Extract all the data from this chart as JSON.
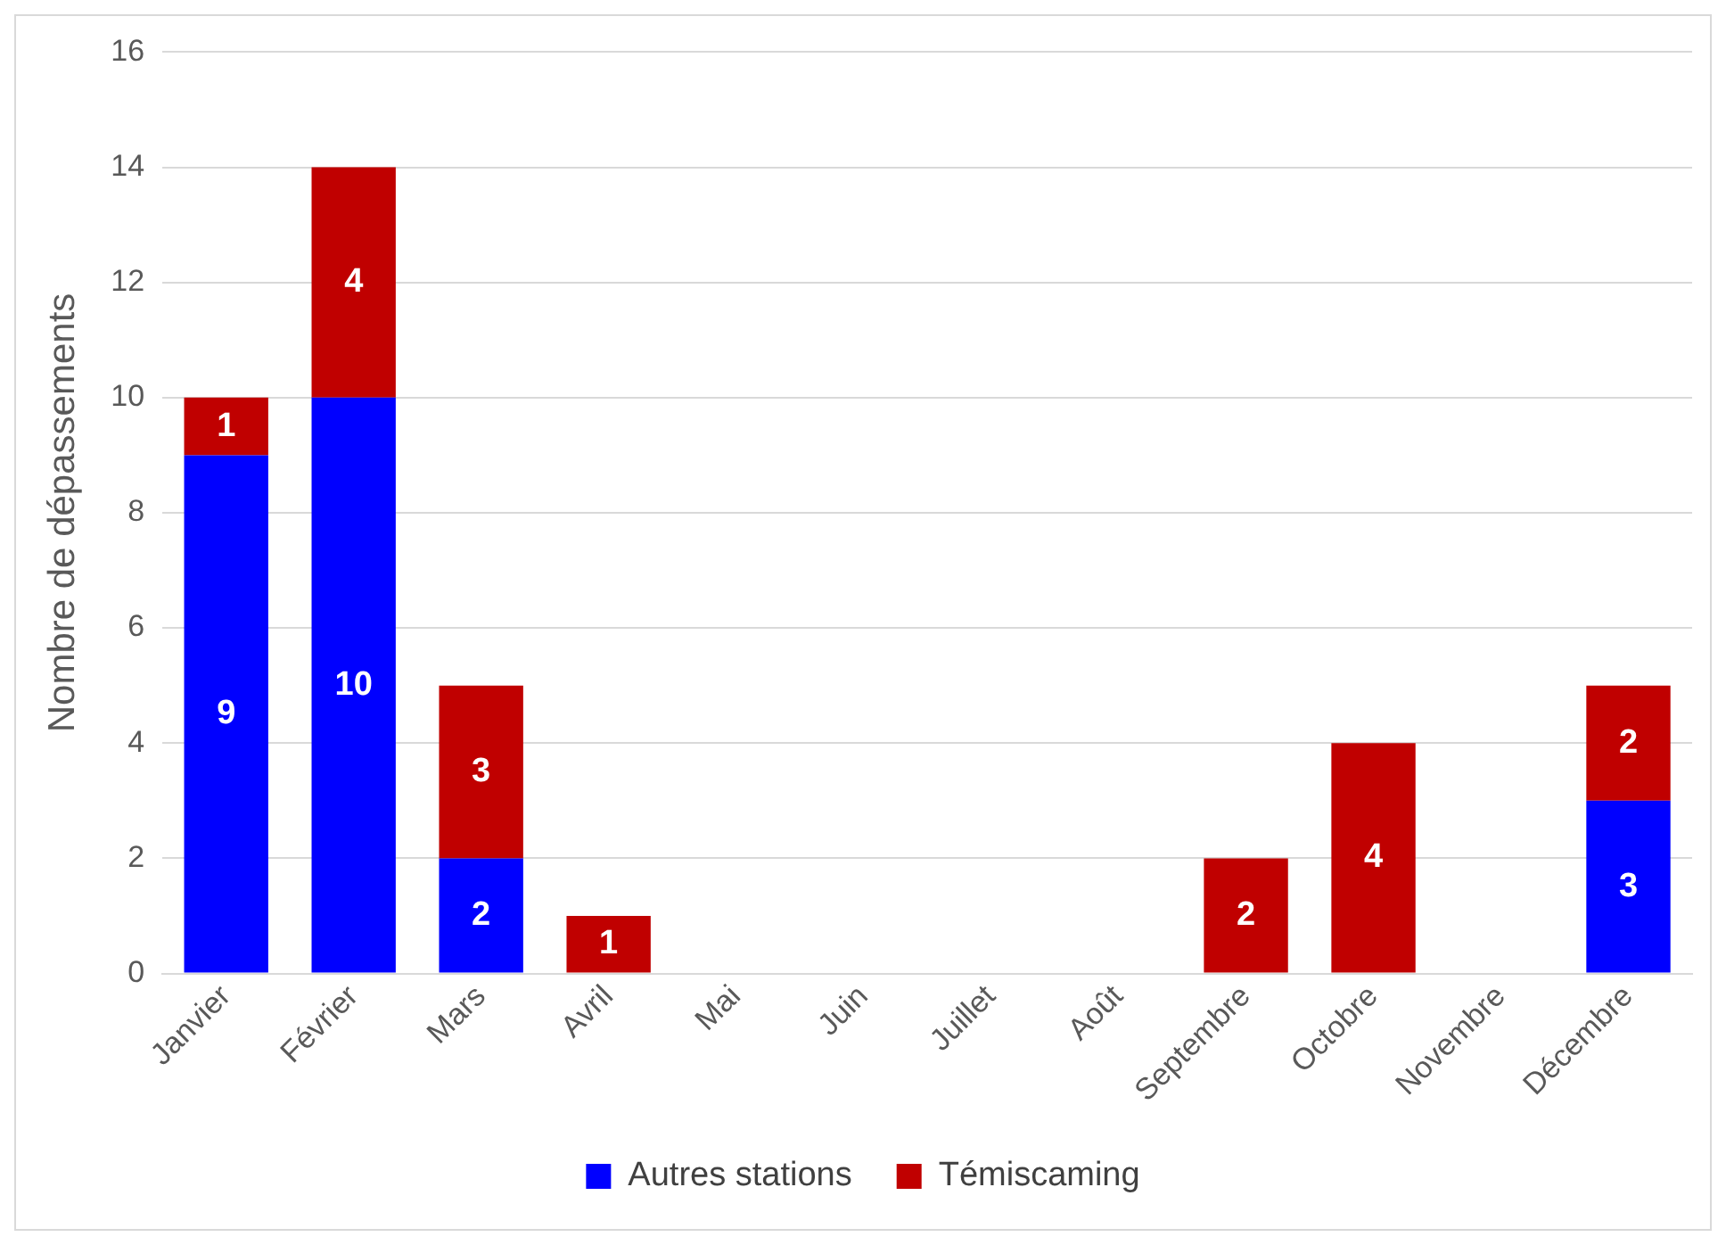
{
  "chart_data": {
    "type": "bar",
    "stacked": true,
    "ylabel": "Nombre de dépassements",
    "categories": [
      "Janvier",
      "Février",
      "Mars",
      "Avril",
      "Mai",
      "Juin",
      "Juillet",
      "Août",
      "Septembre",
      "Octobre",
      "Novembre",
      "Décembre"
    ],
    "series": [
      {
        "name": "Autres stations",
        "color": "#0000ff",
        "values": [
          9,
          10,
          2,
          0,
          0,
          0,
          0,
          0,
          0,
          0,
          0,
          3
        ],
        "value_labels": [
          "9",
          "10",
          "2",
          null,
          null,
          null,
          null,
          null,
          null,
          null,
          null,
          "3"
        ]
      },
      {
        "name": "Témiscaming",
        "color": "#c00000",
        "values": [
          1,
          4,
          3,
          1,
          0,
          0,
          0,
          0,
          2,
          4,
          0,
          2
        ],
        "value_labels": [
          "1",
          "4",
          "3",
          "1",
          null,
          null,
          null,
          null,
          "2",
          "4",
          null,
          "2"
        ]
      }
    ],
    "ylim": [
      0,
      16
    ],
    "yticks": [
      0,
      2,
      4,
      6,
      8,
      10,
      12,
      14,
      16
    ],
    "grid": "y",
    "legend": "bottom"
  }
}
